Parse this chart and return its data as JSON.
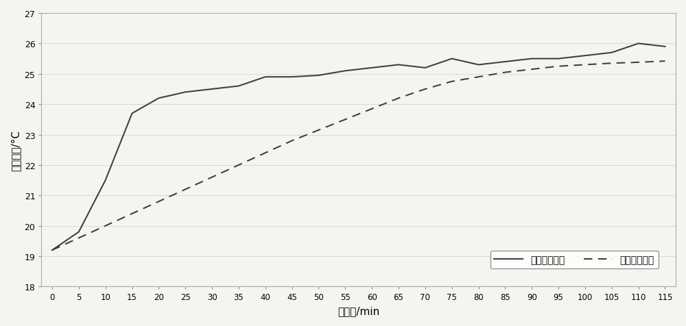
{
  "actual_x": [
    0,
    5,
    10,
    15,
    20,
    25,
    30,
    35,
    40,
    45,
    50,
    55,
    60,
    65,
    70,
    75,
    80,
    85,
    90,
    95,
    100,
    105,
    110,
    115
  ],
  "actual_y": [
    19.2,
    19.8,
    21.5,
    23.7,
    24.2,
    24.4,
    24.5,
    24.6,
    24.9,
    24.9,
    24.95,
    25.1,
    25.2,
    25.3,
    25.2,
    25.5,
    25.3,
    25.4,
    25.5,
    25.5,
    25.6,
    25.7,
    26.0,
    25.9
  ],
  "simulated_x": [
    0,
    5,
    10,
    15,
    20,
    25,
    30,
    35,
    40,
    45,
    50,
    55,
    60,
    65,
    70,
    75,
    80,
    85,
    90,
    95,
    100,
    105,
    110,
    115
  ],
  "simulated_y": [
    19.2,
    19.6,
    20.0,
    20.4,
    20.8,
    21.2,
    21.6,
    22.0,
    22.4,
    22.8,
    23.15,
    23.5,
    23.85,
    24.2,
    24.5,
    24.75,
    24.9,
    25.05,
    25.15,
    25.25,
    25.3,
    25.35,
    25.38,
    25.42
  ],
  "xlabel": "时间轴/min",
  "ylabel": "室内温度/°C",
  "legend_actual": "实际温度曲线",
  "legend_simulated": "模拟温度曲线",
  "xlim": [
    0,
    115
  ],
  "ylim": [
    18,
    27
  ],
  "xticks": [
    0,
    5,
    10,
    15,
    20,
    25,
    30,
    35,
    40,
    45,
    50,
    55,
    60,
    65,
    70,
    75,
    80,
    85,
    90,
    95,
    100,
    105,
    110,
    115
  ],
  "yticks": [
    18,
    19,
    20,
    21,
    22,
    23,
    24,
    25,
    26,
    27
  ],
  "line_color": "#404040",
  "bg_color": "#f5f5f0",
  "grid_color": "#cccccc"
}
